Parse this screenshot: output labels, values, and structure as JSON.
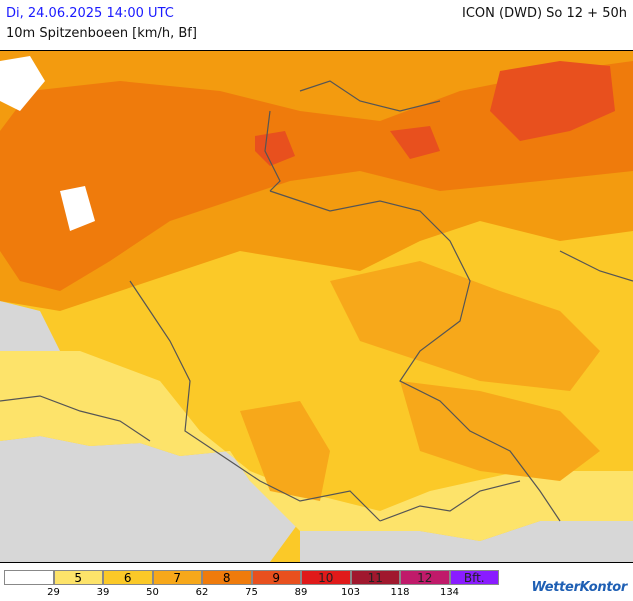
{
  "header": {
    "datetime": "Di, 24.06.2025 14:00 UTC",
    "model": "ICON (DWD) So 12 + 50h",
    "subtitle": "10m Spitzenboeen [km/h, Bf]"
  },
  "map": {
    "colors": {
      "land_light": "#fde36a",
      "land_yellow": "#fbc928",
      "bf6": "#fbc000",
      "bf7": "#f39b0f",
      "bf8": "#ef7b0c",
      "bf9": "#e8501e",
      "sea_outside": "#d7d7d7",
      "calm": "#ffffff",
      "border": "#555555"
    }
  },
  "legend": {
    "cells": [
      {
        "label": "",
        "color": "#ffffff"
      },
      {
        "label": "5",
        "color": "#fde36a"
      },
      {
        "label": "6",
        "color": "#fbc928"
      },
      {
        "label": "7",
        "color": "#f7a81a"
      },
      {
        "label": "8",
        "color": "#ef7b0c"
      },
      {
        "label": "9",
        "color": "#e8501e"
      },
      {
        "label": "10",
        "color": "#e01a1a"
      },
      {
        "label": "11",
        "color": "#a0182e"
      },
      {
        "label": "12",
        "color": "#c01a6a"
      },
      {
        "label": "Bft.",
        "color": "#8a1cff"
      }
    ],
    "ticks": [
      "29",
      "39",
      "50",
      "62",
      "75",
      "89",
      "103",
      "118",
      "134"
    ]
  },
  "brand": {
    "name": "WetterKontor"
  }
}
